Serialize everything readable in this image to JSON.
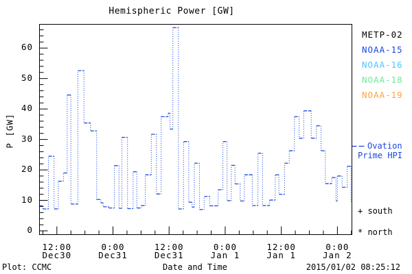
{
  "title": "Hemispheric Power [GW]",
  "colors": {
    "frame": "#000000",
    "line_blue": "#1a47e0",
    "noaa16_cyan": "#4cc7ff",
    "noaa18_green": "#6fe896",
    "noaa19_orange": "#ffa23e",
    "text_black": "#000000"
  },
  "legend": {
    "satellites": [
      {
        "label": "METP-02",
        "color": "#000000"
      },
      {
        "label": "NOAA-15",
        "color": "#1a47e0"
      },
      {
        "label": "NOAA-16",
        "color": "#4cc7ff"
      },
      {
        "label": "NOAA-18",
        "color": "#6fe896"
      },
      {
        "label": "NOAA-19",
        "color": "#ffa23e"
      }
    ],
    "model": {
      "line1": "Ovation",
      "line2": "Prime HPI",
      "sample_style": "dashed",
      "color": "#1a47e0"
    },
    "markers": [
      {
        "symbol": "+",
        "label": "south"
      },
      {
        "symbol": "*",
        "label": "north"
      }
    ]
  },
  "axes": {
    "y": {
      "label": "P [GW]",
      "ticks": [
        0,
        10,
        20,
        30,
        40,
        50,
        60
      ],
      "minor_step": 2,
      "range": [
        -1.2,
        67.9
      ]
    },
    "x": {
      "label": "Date and Time",
      "ticks": [
        {
          "hour": 12,
          "time": "12:00",
          "date": "Dec30"
        },
        {
          "hour": 24,
          "time": "0:00",
          "date": "Dec31"
        },
        {
          "hour": 36,
          "time": "12:00",
          "date": "Dec31"
        },
        {
          "hour": 48,
          "time": "0:00",
          "date": "Jan 1"
        },
        {
          "hour": 60,
          "time": "12:00",
          "date": "Jan 1"
        },
        {
          "hour": 72,
          "time": "0:00",
          "date": "Jan 2"
        }
      ],
      "minor_step_hours": 3,
      "range_hours": [
        8.28,
        75.1
      ]
    }
  },
  "footer": {
    "left": "Plot: CCMC",
    "right": "2015/01/02 08:25:12"
  },
  "chart_data": {
    "type": "line",
    "subtype": "dotted-step",
    "title": "Hemispheric Power [GW]",
    "xlabel": "Date and Time",
    "ylabel": "P [GW]",
    "ylim": [
      -1.2,
      67.9
    ],
    "xlim_hours_since_Dec30_00UT": [
      8.28,
      75.1
    ],
    "legend_position": "right-outside",
    "grid": false,
    "series": [
      {
        "name": "Ovation Prime HPI",
        "unit": "GW",
        "color": "#1a47e0",
        "time_unit": "hours since 2014-12-30 00:00 UT",
        "segments": [
          [
            8.3,
            9.0,
            8.2
          ],
          [
            9.0,
            10.2,
            7.2
          ],
          [
            10.2,
            11.4,
            24.5
          ],
          [
            11.4,
            12.3,
            7.2
          ],
          [
            12.3,
            13.4,
            16.3
          ],
          [
            13.4,
            14.2,
            19.0
          ],
          [
            14.2,
            15.0,
            44.6
          ],
          [
            15.0,
            16.5,
            8.8
          ],
          [
            16.5,
            17.8,
            52.6
          ],
          [
            17.8,
            19.2,
            35.4
          ],
          [
            19.2,
            20.5,
            32.8
          ],
          [
            20.5,
            21.4,
            10.3
          ],
          [
            21.4,
            21.9,
            9.2
          ],
          [
            21.9,
            23.1,
            7.9
          ],
          [
            23.1,
            24.3,
            7.5
          ],
          [
            24.3,
            25.3,
            21.4
          ],
          [
            25.3,
            25.9,
            7.4
          ],
          [
            25.9,
            27.1,
            30.7
          ],
          [
            27.1,
            28.3,
            7.3
          ],
          [
            28.3,
            29.1,
            19.4
          ],
          [
            29.1,
            30.0,
            7.5
          ],
          [
            30.0,
            30.9,
            8.3
          ],
          [
            30.9,
            32.2,
            18.4
          ],
          [
            32.2,
            33.3,
            31.7
          ],
          [
            33.3,
            34.3,
            12.1
          ],
          [
            34.3,
            35.8,
            37.5
          ],
          [
            35.8,
            36.2,
            38.6
          ],
          [
            36.2,
            36.8,
            33.4
          ],
          [
            36.8,
            38.0,
            66.7
          ],
          [
            38.0,
            39.1,
            7.2
          ],
          [
            39.1,
            40.2,
            29.3
          ],
          [
            40.2,
            40.9,
            9.4
          ],
          [
            40.9,
            41.4,
            7.8
          ],
          [
            41.4,
            42.5,
            22.2
          ],
          [
            42.5,
            43.5,
            7.0
          ],
          [
            43.5,
            44.7,
            11.3
          ],
          [
            44.7,
            46.5,
            8.2
          ],
          [
            46.5,
            47.5,
            13.5
          ],
          [
            47.5,
            48.4,
            29.3
          ],
          [
            48.4,
            49.3,
            9.9
          ],
          [
            49.3,
            50.1,
            21.5
          ],
          [
            50.1,
            51.2,
            15.4
          ],
          [
            51.2,
            52.1,
            9.8
          ],
          [
            52.1,
            53.8,
            18.4
          ],
          [
            53.8,
            55.0,
            8.3
          ],
          [
            55.0,
            56.0,
            25.5
          ],
          [
            56.0,
            57.5,
            8.3
          ],
          [
            57.5,
            58.7,
            10.1
          ],
          [
            58.7,
            59.5,
            18.4
          ],
          [
            59.5,
            60.7,
            12.0
          ],
          [
            60.7,
            61.7,
            22.2
          ],
          [
            61.7,
            62.8,
            26.3
          ],
          [
            62.8,
            63.8,
            37.5
          ],
          [
            63.8,
            64.8,
            30.4
          ],
          [
            64.8,
            66.4,
            39.4
          ],
          [
            66.4,
            67.5,
            30.4
          ],
          [
            67.5,
            68.5,
            34.5
          ],
          [
            68.5,
            69.4,
            26.3
          ],
          [
            69.4,
            70.8,
            15.5
          ],
          [
            70.8,
            71.7,
            17.5
          ],
          [
            71.7,
            72.0,
            9.8
          ],
          [
            72.0,
            73.0,
            18.0
          ],
          [
            73.0,
            74.1,
            14.3
          ],
          [
            74.1,
            74.9,
            21.2
          ],
          [
            74.9,
            75.1,
            9.7
          ]
        ]
      }
    ]
  }
}
